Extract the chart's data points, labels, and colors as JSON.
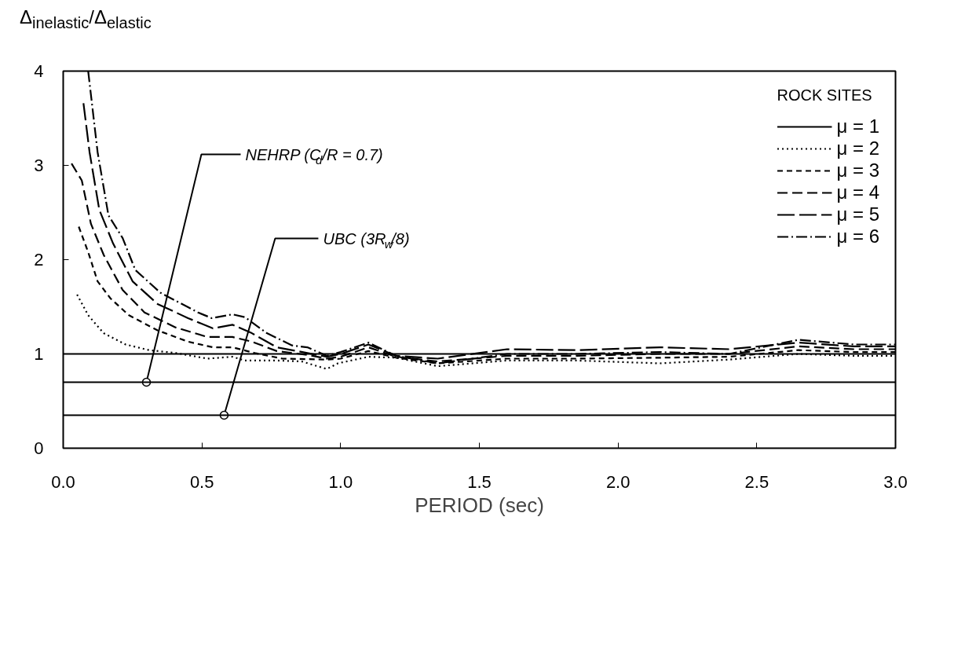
{
  "chart_data": {
    "type": "line",
    "xlabel": "PERIOD (sec)",
    "ylabel": "Δ$_{inelastic}$/Δ$_{elastic}$",
    "legend_title": "ROCK SITES",
    "legend": "top right",
    "grid": false,
    "xlim": [
      0,
      3
    ],
    "ylim": [
      0,
      4
    ],
    "xticks": [
      {
        "value": 0,
        "label": "0.0"
      },
      {
        "value": 0.5,
        "label": "0.5"
      },
      {
        "value": 1,
        "label": "1.0"
      },
      {
        "value": 1.5,
        "label": "1.5"
      },
      {
        "value": 2,
        "label": "2.0"
      },
      {
        "value": 2.5,
        "label": "2.5"
      },
      {
        "value": 3,
        "label": "3.0"
      }
    ],
    "yticks": [
      0,
      1,
      2,
      3,
      4
    ],
    "series": [
      {
        "name": "μ = 1",
        "color": "#000000",
        "line_style": "solid",
        "x": [
          0,
          3
        ],
        "values": [
          1,
          1
        ]
      },
      {
        "name": "μ = 2",
        "color": "#000000",
        "line_style": "dotted",
        "x": [
          0.05,
          0.09,
          0.146,
          0.225,
          0.31,
          0.406,
          0.52,
          0.61,
          0.655,
          0.77,
          0.86,
          0.95,
          0.99,
          1.1,
          1.2,
          1.35,
          1.6,
          1.85,
          2.15,
          2.4,
          2.65,
          2.85,
          3.0
        ],
        "values": [
          1.63,
          1.41,
          1.22,
          1.1,
          1.04,
          1.01,
          0.95,
          0.97,
          0.93,
          0.93,
          0.92,
          0.84,
          0.9,
          0.97,
          0.96,
          0.87,
          0.93,
          0.93,
          0.9,
          0.94,
          1.0,
          0.98,
          0.98
        ]
      },
      {
        "name": "μ = 3",
        "color": "#000000",
        "line_style": "dashed",
        "x": [
          0.056,
          0.09,
          0.124,
          0.17,
          0.237,
          0.34,
          0.45,
          0.54,
          0.61,
          0.69,
          0.79,
          0.95,
          1.0,
          1.1,
          1.2,
          1.35,
          1.6,
          1.85,
          2.15,
          2.4,
          2.65,
          2.85,
          3.0
        ],
        "values": [
          2.35,
          2.08,
          1.77,
          1.59,
          1.41,
          1.25,
          1.13,
          1.07,
          1.07,
          1.01,
          0.95,
          0.94,
          0.95,
          1.03,
          0.96,
          0.9,
          0.95,
          0.95,
          0.96,
          0.97,
          1.04,
          1.02,
          1.02
        ]
      },
      {
        "name": "μ = 4",
        "color": "#000000",
        "line_style": "longdash",
        "x": [
          0.03,
          0.067,
          0.1,
          0.146,
          0.214,
          0.293,
          0.406,
          0.52,
          0.61,
          0.68,
          0.77,
          0.88,
          0.95,
          1.0,
          1.1,
          1.2,
          1.35,
          1.6,
          1.85,
          2.15,
          2.4,
          2.65,
          2.85,
          3.0
        ],
        "values": [
          3.02,
          2.84,
          2.38,
          2.05,
          1.68,
          1.44,
          1.28,
          1.18,
          1.18,
          1.13,
          1.03,
          0.99,
          0.95,
          0.97,
          1.07,
          0.97,
          0.92,
          0.98,
          0.98,
          1.0,
          1.0,
          1.08,
          1.05,
          1.05
        ]
      },
      {
        "name": "μ = 5",
        "color": "#000000",
        "line_style": "longerdash",
        "x": [
          0.073,
          0.095,
          0.13,
          0.18,
          0.25,
          0.34,
          0.45,
          0.54,
          0.61,
          0.68,
          0.77,
          0.88,
          0.95,
          1.0,
          1.1,
          1.2,
          1.35,
          1.6,
          1.85,
          2.15,
          2.4,
          2.65,
          2.85,
          3.0
        ],
        "values": [
          3.66,
          3.14,
          2.53,
          2.17,
          1.77,
          1.53,
          1.38,
          1.27,
          1.31,
          1.22,
          1.07,
          1.01,
          0.97,
          1.0,
          1.1,
          0.98,
          0.95,
          1.05,
          1.04,
          1.07,
          1.05,
          1.12,
          1.08,
          1.08
        ]
      },
      {
        "name": "μ = 6",
        "color": "#000000",
        "line_style": "dashdot",
        "x": [
          0.09,
          0.124,
          0.163,
          0.214,
          0.26,
          0.35,
          0.486,
          0.535,
          0.61,
          0.655,
          0.734,
          0.825,
          0.88,
          0.95,
          1.0,
          1.1,
          1.2,
          1.35,
          1.6,
          1.85,
          2.15,
          2.4,
          2.65,
          2.85,
          3.0
        ],
        "values": [
          4.0,
          3.14,
          2.47,
          2.23,
          1.89,
          1.65,
          1.44,
          1.38,
          1.42,
          1.39,
          1.22,
          1.09,
          1.07,
          0.98,
          1.02,
          1.12,
          0.98,
          0.9,
          1.0,
          1.0,
          1.02,
          1.0,
          1.15,
          1.1,
          1.1
        ]
      }
    ],
    "ref_lines": [
      {
        "axis": "y",
        "value": 0.7,
        "color": "#000000"
      },
      {
        "axis": "y",
        "value": 0.35,
        "color": "#000000"
      }
    ],
    "annotations": [
      {
        "text": "NEHRP (C$_{d}$/R = 0.7)",
        "x": 0.3,
        "y": 0.7
      },
      {
        "text": "UBC (3R$_{w}$/8)",
        "x": 0.58,
        "y": 0.35
      }
    ]
  }
}
